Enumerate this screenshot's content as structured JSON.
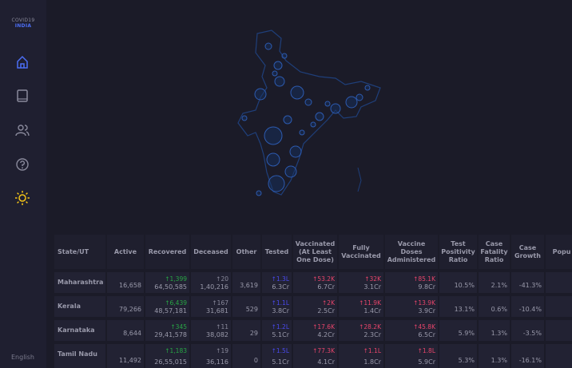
{
  "sidebar": {
    "logo_top": "COVID19",
    "logo_bottom": "INDIA",
    "language": "English"
  },
  "table": {
    "header": [
      "State/UT",
      "Active",
      "Recovered",
      "Deceased",
      "Other",
      "Tested",
      "Vaccinated (At Least One Dose)",
      "Fully Vaccinated",
      "Vaccine Doses Administered",
      "Test Positivity Ratio",
      "Case Fatality Ratio",
      "Case Growth",
      "Popu"
    ],
    "rows": [
      {
        "state": "Maharashtra",
        "cells": [
          {
            "value": "16,658"
          },
          {
            "delta": "↑1,399",
            "value": "64,50,585"
          },
          {
            "delta": "↑20",
            "value": "1,40,216"
          },
          {
            "value": "3,619"
          },
          {
            "delta": "↑1.3L",
            "value": "6.3Cr"
          },
          {
            "delta": "↑53.2K",
            "value": "6.7Cr"
          },
          {
            "delta": "↑32K",
            "value": "3.1Cr"
          },
          {
            "delta": "↑85.1K",
            "value": "9.8Cr"
          },
          {
            "value": "10.5%"
          },
          {
            "value": "2.1%"
          },
          {
            "value": "-41.3%"
          }
        ]
      },
      {
        "state": "Kerala",
        "cells": [
          {
            "value": "79,266"
          },
          {
            "delta": "↑6,439",
            "value": "48,57,181"
          },
          {
            "delta": "↑167",
            "value": "31,681"
          },
          {
            "value": "529"
          },
          {
            "delta": "↑1.1L",
            "value": "3.8Cr"
          },
          {
            "delta": "↑2K",
            "value": "2.5Cr"
          },
          {
            "delta": "↑11.9K",
            "value": "1.4Cr"
          },
          {
            "delta": "↑13.9K",
            "value": "3.9Cr"
          },
          {
            "value": "13.1%"
          },
          {
            "value": "0.6%"
          },
          {
            "value": "-10.4%"
          }
        ]
      },
      {
        "state": "Karnataka",
        "cells": [
          {
            "value": "8,644"
          },
          {
            "delta": "↑345",
            "value": "29,41,578"
          },
          {
            "delta": "↑11",
            "value": "38,082"
          },
          {
            "value": "29"
          },
          {
            "delta": "↑1.2L",
            "value": "5.1Cr"
          },
          {
            "delta": "↑17.6K",
            "value": "4.2Cr"
          },
          {
            "delta": "↑28.2K",
            "value": "2.3Cr"
          },
          {
            "delta": "↑45.8K",
            "value": "6.5Cr"
          },
          {
            "value": "5.9%"
          },
          {
            "value": "1.3%"
          },
          {
            "value": "-3.5%"
          }
        ]
      },
      {
        "state": "Tamil Nadu",
        "cells": [
          {
            "value": "11,492"
          },
          {
            "delta": "↑1,183",
            "value": "26,55,015"
          },
          {
            "delta": "↑19",
            "value": "36,116"
          },
          {
            "value": "0"
          },
          {
            "delta": "↑1.5L",
            "value": "5.1Cr"
          },
          {
            "delta": "↑77.3K",
            "value": "4.1Cr"
          },
          {
            "delta": "↑1.1L",
            "value": "1.8Cr"
          },
          {
            "delta": "↑1.8L",
            "value": "5.9Cr"
          },
          {
            "value": "5.3%"
          },
          {
            "value": "1.3%"
          },
          {
            "value": "-16.1%"
          }
        ]
      }
    ]
  }
}
